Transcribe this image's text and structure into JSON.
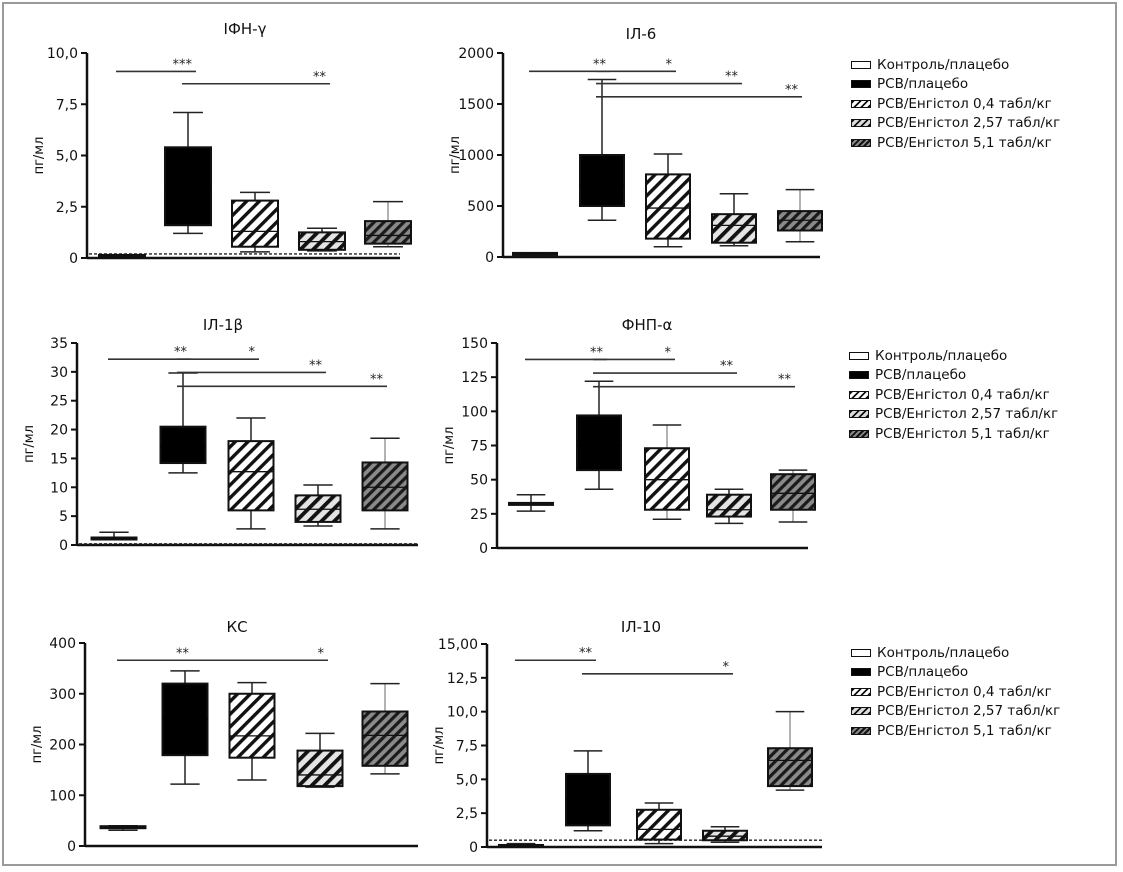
{
  "groups": [
    "Контроль/плацебо",
    "РСВ/плацебо",
    "РСВ/Енгістол 0,4 табл/кг",
    "РСВ/Енгістол 2,57 табл/кг",
    "РСВ/Енгістол 5,1 табл/кг"
  ],
  "colors": {
    "frame": "#9a9a9a",
    "axis": "#111111",
    "control_fill": "#ffffff",
    "rsv_fill": "#000000",
    "hatch_light": "#ffffff",
    "hatch_dark": "#6a6a6a"
  },
  "legends": [
    {
      "items": [
        "Контроль/плацебо",
        "РСВ/плацебо",
        "РСВ/Енгістол 0,4 табл/кг",
        "РСВ/Енгістол 2,57 табл/кг",
        "РСВ/Енгістол 5,1 табл/кг"
      ]
    },
    {
      "items": [
        "Контроль/плацебо",
        "РСВ/плацебо",
        "РСВ/Енгістол 0,4 табл/кг",
        "РСВ/Енгістол 2,57 табл/кг",
        "РСВ/Енгістол 5,1 табл/кг"
      ]
    },
    {
      "items": [
        "Контроль/плацебо",
        "РСВ/плацебо",
        "РСВ/Енгістол 0,4 табл/кг",
        "РСВ/Енгістол 2,57 табл/кг",
        "РСВ/Енгістол 5,1 табл/кг"
      ]
    }
  ],
  "chart_data": [
    {
      "type": "box",
      "title": "ІФН-γ",
      "ylabel": "пг/мл",
      "ylim": [
        0,
        10
      ],
      "yticks": [
        0,
        2.5,
        5,
        7.5,
        10
      ],
      "ytick_labels": [
        "0",
        "2,5",
        "5,0",
        "7,5",
        "10,0"
      ],
      "detection_limit": 0.2,
      "categories": [
        "Контроль/плацебо",
        "РСВ/плацебо",
        "РСВ/Енгістол 0,4 табл/кг",
        "РСВ/Енгістол 2,57 табл/кг",
        "РСВ/Енгістол 5,1 табл/кг"
      ],
      "boxes": [
        {
          "min": 0.1,
          "q1": 0.1,
          "median": 0.1,
          "q3": 0.15,
          "max": 0.15
        },
        {
          "min": 1.2,
          "q1": 1.6,
          "median": 3.5,
          "q3": 5.4,
          "max": 7.1
        },
        {
          "min": 0.3,
          "q1": 0.55,
          "median": 1.3,
          "q3": 2.8,
          "max": 3.2
        },
        {
          "min": 0.35,
          "q1": 0.4,
          "median": 0.8,
          "q3": 1.25,
          "max": 1.45
        },
        {
          "min": 0.55,
          "q1": 0.7,
          "median": 1.1,
          "q3": 1.8,
          "max": 2.75
        }
      ],
      "significance": [
        {
          "from": 0,
          "to": 1,
          "label": "***",
          "y": 9.1
        },
        {
          "from": 1,
          "to": 3,
          "label": "**",
          "y": 8.5
        }
      ]
    },
    {
      "type": "box",
      "title": "ІЛ-6",
      "ylabel": "пг/мл",
      "ylim": [
        0,
        2000
      ],
      "yticks": [
        0,
        500,
        1000,
        1500,
        2000
      ],
      "ytick_labels": [
        "0",
        "500",
        "1000",
        "1500",
        "2000"
      ],
      "categories": [
        "Контроль/плацебо",
        "РСВ/плацебо",
        "РСВ/Енгістол 0,4 табл/кг",
        "РСВ/Енгістол 2,57 табл/кг",
        "РСВ/Енгістол 5,1 табл/кг"
      ],
      "boxes": [
        {
          "min": 20,
          "q1": 20,
          "median": 30,
          "q3": 40,
          "max": 40
        },
        {
          "min": 360,
          "q1": 500,
          "median": 700,
          "q3": 1000,
          "max": 1740
        },
        {
          "min": 100,
          "q1": 180,
          "median": 480,
          "q3": 810,
          "max": 1010
        },
        {
          "min": 110,
          "q1": 140,
          "median": 310,
          "q3": 420,
          "max": 620
        },
        {
          "min": 150,
          "q1": 260,
          "median": 360,
          "q3": 450,
          "max": 660
        }
      ],
      "significance": [
        {
          "from": 0,
          "to": 1,
          "label": "**",
          "y": 1820
        },
        {
          "from": 1,
          "to": 2,
          "label": "*",
          "y": 1820
        },
        {
          "from": 1,
          "to": 3,
          "label": "**",
          "y": 1700
        },
        {
          "from": 1,
          "to": 4,
          "label": "**",
          "y": 1570
        }
      ]
    },
    {
      "type": "box",
      "title": "ІЛ-1β",
      "ylabel": "пг/мл",
      "ylim": [
        0,
        35
      ],
      "yticks": [
        0,
        5,
        10,
        15,
        20,
        25,
        30,
        35
      ],
      "ytick_labels": [
        "0",
        "5",
        "10",
        "15",
        "20",
        "25",
        "30",
        "35"
      ],
      "detection_limit": 0.2,
      "categories": [
        "Контроль/плацебо",
        "РСВ/плацебо",
        "РСВ/Енгістол 0,4 табл/кг",
        "РСВ/Енгістол 2,57 табл/кг",
        "РСВ/Енгістол 5,1 табл/кг"
      ],
      "boxes": [
        {
          "min": 1.0,
          "q1": 1.2,
          "median": 1.2,
          "q3": 1.3,
          "max": 2.2
        },
        {
          "min": 12.5,
          "q1": 14.2,
          "median": 17,
          "q3": 20.5,
          "max": 29.8
        },
        {
          "min": 2.8,
          "q1": 6.0,
          "median": 12.7,
          "q3": 18.0,
          "max": 22.0
        },
        {
          "min": 3.3,
          "q1": 4.0,
          "median": 6.2,
          "q3": 8.6,
          "max": 10.4
        },
        {
          "min": 2.8,
          "q1": 6.0,
          "median": 10.0,
          "q3": 14.3,
          "max": 18.5
        }
      ],
      "significance": [
        {
          "from": 0,
          "to": 1,
          "label": "**",
          "y": 32.2
        },
        {
          "from": 1,
          "to": 2,
          "label": "*",
          "y": 32.2
        },
        {
          "from": 1,
          "to": 3,
          "label": "**",
          "y": 29.9
        },
        {
          "from": 1,
          "to": 4,
          "label": "**",
          "y": 27.5
        }
      ]
    },
    {
      "type": "box",
      "title": "ФНП-α",
      "ylabel": "пг/мл",
      "ylim": [
        0,
        150
      ],
      "yticks": [
        0,
        25,
        50,
        75,
        100,
        125,
        150
      ],
      "ytick_labels": [
        "0",
        "25",
        "50",
        "75",
        "100",
        "125",
        "150"
      ],
      "categories": [
        "Контроль/плацебо",
        "РСВ/плацебо",
        "РСВ/Енгістол 0,4 табл/кг",
        "РСВ/Енгістол 2,57 табл/кг",
        "РСВ/Енгістол 5,1 табл/кг"
      ],
      "boxes": [
        {
          "min": 27,
          "q1": 33,
          "median": 33,
          "q3": 33,
          "max": 39
        },
        {
          "min": 43,
          "q1": 57,
          "median": 75,
          "q3": 97,
          "max": 122
        },
        {
          "min": 21,
          "q1": 28,
          "median": 50,
          "q3": 73,
          "max": 90
        },
        {
          "min": 18,
          "q1": 23,
          "median": 28,
          "q3": 39,
          "max": 43
        },
        {
          "min": 19,
          "q1": 28,
          "median": 40,
          "q3": 54,
          "max": 57
        }
      ],
      "significance": [
        {
          "from": 0,
          "to": 1,
          "label": "**",
          "y": 138
        },
        {
          "from": 1,
          "to": 2,
          "label": "*",
          "y": 138
        },
        {
          "from": 1,
          "to": 3,
          "label": "**",
          "y": 128
        },
        {
          "from": 1,
          "to": 4,
          "label": "**",
          "y": 118
        }
      ]
    },
    {
      "type": "box",
      "title": "КС",
      "ylabel": "пг/мл",
      "ylim": [
        0,
        400
      ],
      "yticks": [
        0,
        100,
        200,
        300,
        400
      ],
      "ytick_labels": [
        "0",
        "100",
        "200",
        "300",
        "400"
      ],
      "categories": [
        "Контроль/плацебо",
        "РСВ/плацебо",
        "РСВ/Енгістол 0,4 табл/кг",
        "РСВ/Енгістол 2,57 табл/кг",
        "РСВ/Енгістол 5,1 табл/кг"
      ],
      "boxes": [
        {
          "min": 31,
          "q1": 37,
          "median": 37,
          "q3": 39,
          "max": 40
        },
        {
          "min": 122,
          "q1": 179,
          "median": 250,
          "q3": 320,
          "max": 345
        },
        {
          "min": 130,
          "q1": 174,
          "median": 217,
          "q3": 300,
          "max": 322
        },
        {
          "min": 116,
          "q1": 118,
          "median": 140,
          "q3": 188,
          "max": 222
        },
        {
          "min": 142,
          "q1": 158,
          "median": 218,
          "q3": 265,
          "max": 320
        }
      ],
      "significance": [
        {
          "from": 0,
          "to": 1,
          "label": "**",
          "y": 366
        },
        {
          "from": 1,
          "to": 3,
          "label": "*",
          "y": 366
        }
      ]
    },
    {
      "type": "box",
      "title": "ІЛ-10",
      "ylabel": "пг/мл",
      "ylim": [
        0,
        15
      ],
      "yticks": [
        0,
        2.5,
        5,
        7.5,
        10,
        12.5,
        15
      ],
      "ytick_labels": [
        "0",
        "2,5",
        "5,0",
        "7,5",
        "10,0",
        "12,5",
        "15,00"
      ],
      "detection_limit": 0.5,
      "categories": [
        "Контроль/плацебо",
        "РСВ/плацебо",
        "РСВ/Енгістол 0,4 табл/кг",
        "РСВ/Енгістол 2,57 табл/кг",
        "РСВ/Енгістол 5,1 табл/кг"
      ],
      "boxes": [
        {
          "min": 0.0,
          "q1": 0.1,
          "median": 0.1,
          "q3": 0.15,
          "max": 0.25
        },
        {
          "min": 1.2,
          "q1": 1.6,
          "median": 3.5,
          "q3": 5.4,
          "max": 7.1
        },
        {
          "min": 0.25,
          "q1": 0.55,
          "median": 1.3,
          "q3": 2.75,
          "max": 3.25
        },
        {
          "min": 0.35,
          "q1": 0.5,
          "median": 0.8,
          "q3": 1.2,
          "max": 1.5
        },
        {
          "min": 4.2,
          "q1": 4.5,
          "median": 6.4,
          "q3": 7.3,
          "max": 10.0
        }
      ],
      "significance": [
        {
          "from": 0,
          "to": 1,
          "label": "**",
          "y": 13.8
        },
        {
          "from": 1,
          "to": 3,
          "label": "*",
          "y": 12.8
        }
      ]
    }
  ]
}
